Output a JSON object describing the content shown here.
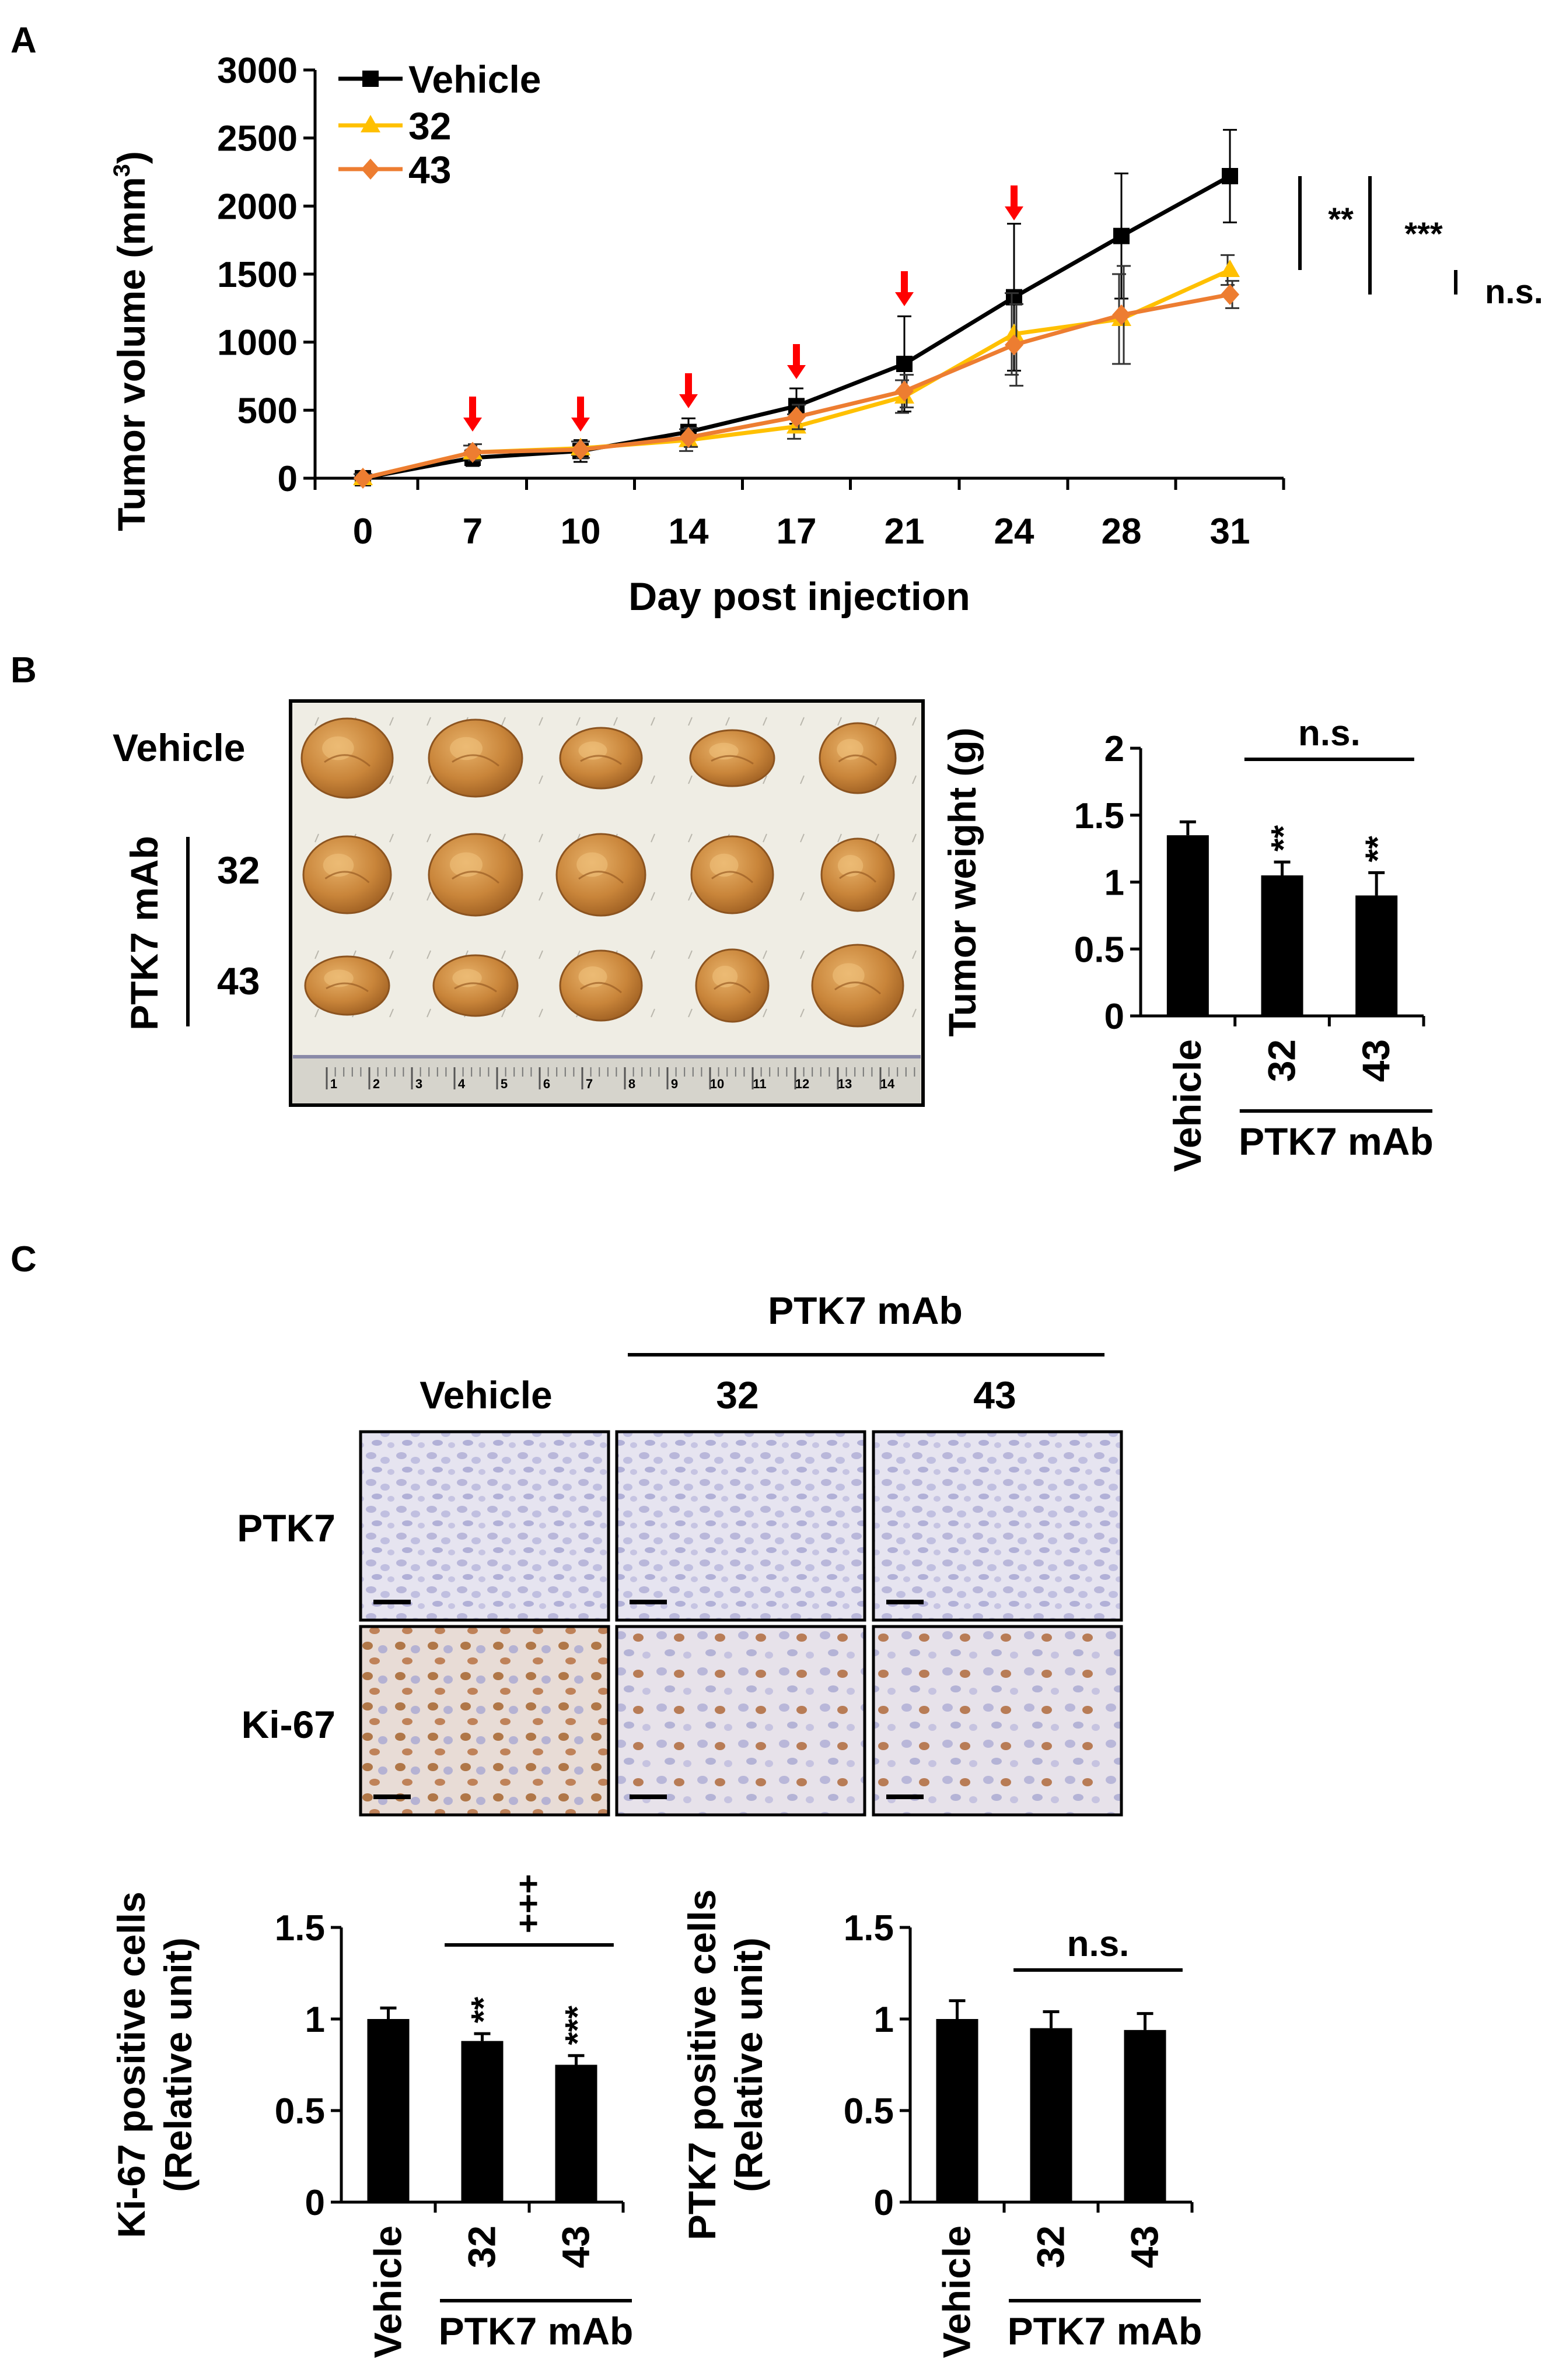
{
  "panels": {
    "a": "A",
    "b": "B",
    "c": "C"
  },
  "chart_data": [
    {
      "type": "line",
      "panel": "A",
      "x": [
        "0",
        "7",
        "10",
        "14",
        "17",
        "21",
        "24",
        "28",
        "31"
      ],
      "xlabel": "Day post injection",
      "ylabel_main": "Tumor volume (mm",
      "ylabel_sup": "3",
      "ylabel_close": ")",
      "ylim": [
        0,
        3000
      ],
      "yticks": [
        "0",
        "500",
        "1000",
        "1500",
        "2000",
        "2500",
        "3000"
      ],
      "legend_position": "top-left",
      "series": [
        {
          "name": "Vehicle",
          "color": "#000000",
          "marker": "square",
          "values": [
            0,
            150,
            200,
            340,
            530,
            840,
            1330,
            1780,
            2220
          ],
          "errors": [
            40,
            60,
            80,
            100,
            130,
            350,
            540,
            460,
            340
          ]
        },
        {
          "name": "32",
          "color": "#ffc000",
          "marker": "triangle",
          "values": [
            0,
            190,
            220,
            280,
            380,
            600,
            1060,
            1170,
            1530
          ],
          "errors": [
            30,
            50,
            50,
            80,
            90,
            120,
            300,
            330,
            110
          ]
        },
        {
          "name": "43",
          "color": "#ed7d31",
          "marker": "diamond",
          "values": [
            0,
            190,
            210,
            300,
            450,
            640,
            980,
            1200,
            1350
          ],
          "errors": [
            30,
            60,
            60,
            70,
            90,
            120,
            300,
            360,
            100
          ]
        }
      ],
      "injection_arrow_days": [
        "7",
        "10",
        "14",
        "17",
        "21",
        "24"
      ],
      "arrow_color": "#ff0000",
      "significance": [
        "**",
        "***",
        "n.s."
      ]
    },
    {
      "type": "bar",
      "panel": "B",
      "categories": [
        "Vehicle",
        "32",
        "43"
      ],
      "values": [
        1.35,
        1.05,
        0.9
      ],
      "errors": [
        0.1,
        0.1,
        0.17
      ],
      "ylabel": "Tumor weight (g)",
      "ylim": [
        0,
        2
      ],
      "yticks": [
        "0",
        "0.5",
        "1",
        "1.5",
        "2"
      ],
      "group_label": "PTK7 mAb",
      "stars": [
        "",
        "**",
        "**"
      ],
      "bracket_label": "n.s.",
      "bar_color": "#000000"
    },
    {
      "type": "bar",
      "panel": "C",
      "categories": [
        "Vehicle",
        "32",
        "43"
      ],
      "values": [
        1.0,
        0.88,
        0.75
      ],
      "errors": [
        0.06,
        0.04,
        0.05
      ],
      "ylabel_line1": "Ki-67 positive cells",
      "ylabel_line2": "(Relative unit)",
      "ylim": [
        0,
        1.5
      ],
      "yticks": [
        "0",
        "0.5",
        "1",
        "1.5"
      ],
      "group_label": "PTK7 mAb",
      "stars": [
        "",
        "**",
        "***"
      ],
      "bracket_label": "+++",
      "bar_color": "#000000"
    },
    {
      "type": "bar",
      "panel": "C",
      "categories": [
        "Vehicle",
        "32",
        "43"
      ],
      "values": [
        1.0,
        0.95,
        0.94
      ],
      "errors": [
        0.1,
        0.09,
        0.09
      ],
      "ylabel_line1": "PTK7 positive cells",
      "ylabel_line2": "(Relative unit)",
      "ylim": [
        0,
        1.5
      ],
      "yticks": [
        "0",
        "0.5",
        "1",
        "1.5"
      ],
      "group_label": "PTK7 mAb",
      "stars": [
        "",
        "",
        ""
      ],
      "bracket_label": "n.s.",
      "bar_color": "#000000"
    }
  ],
  "photo_b": {
    "row_labels": [
      "Vehicle",
      "32",
      "43"
    ],
    "group_label": "PTK7 mAb",
    "tumor_color": "#c9853a",
    "background_color": "#f1efe6",
    "ruler_numbers": [
      "1",
      "2",
      "3",
      "4",
      "5",
      "6",
      "7",
      "8",
      "9",
      "10",
      "11",
      "12",
      "13",
      "14"
    ]
  },
  "histology_c": {
    "group_label": "PTK7 mAb",
    "column_labels": [
      "Vehicle",
      "32",
      "43"
    ],
    "row_labels": [
      "PTK7",
      "Ki-67"
    ],
    "stain_colors": {
      "hematoxylin": "#c5c6e2",
      "dab": "#b97a4b"
    }
  }
}
